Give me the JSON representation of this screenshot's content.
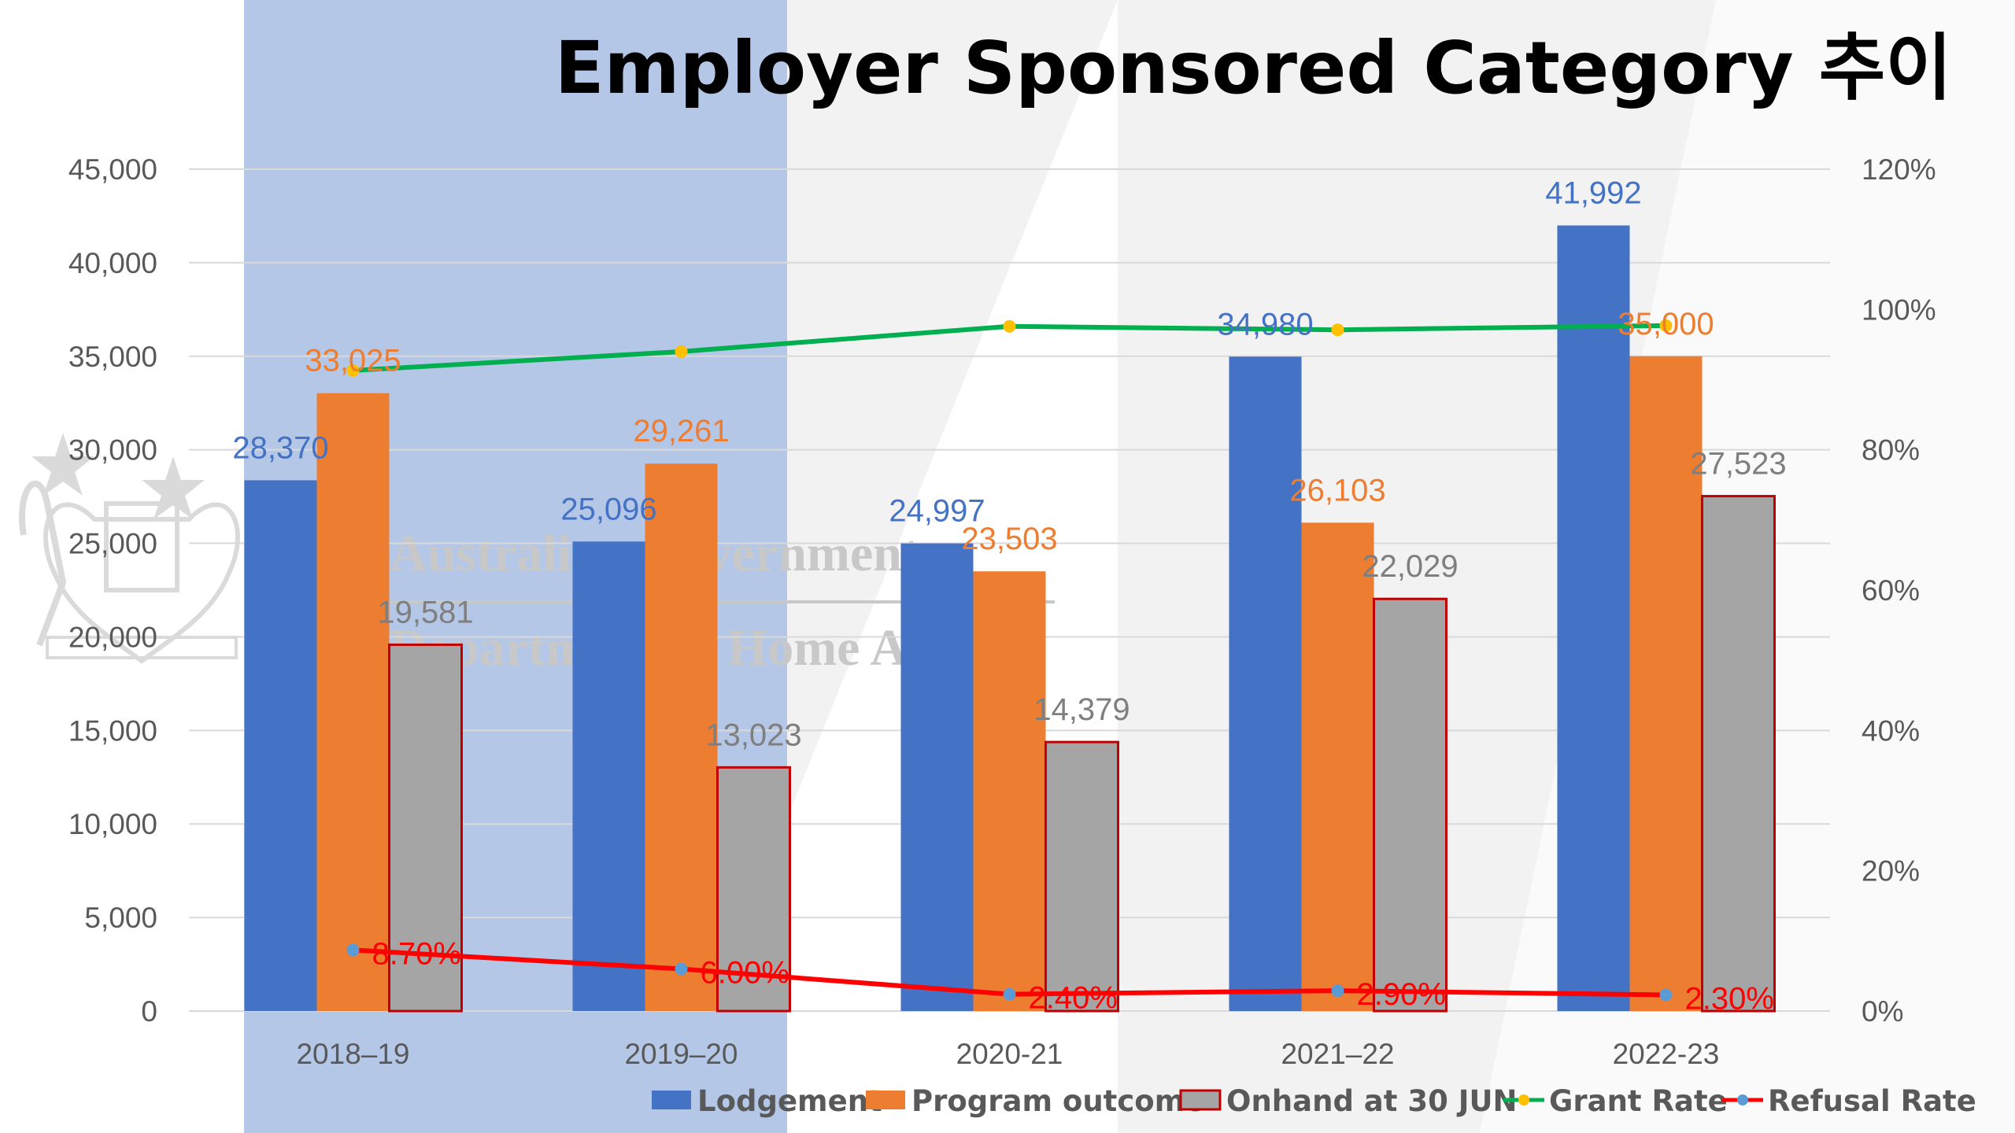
{
  "chart_data": {
    "title": "Employer Sponsored Category 추이",
    "type": "bar",
    "categories": [
      "2018–19",
      "2019–20",
      "2020-21",
      "2021–22",
      "2022-23"
    ],
    "series": [
      {
        "name": "Lodgement",
        "type": "bar",
        "axis": "left",
        "color": "#4472c4",
        "values": [
          28370,
          25096,
          24997,
          34980,
          41992
        ],
        "labels": [
          "28,370",
          "25,096",
          "24,997",
          "34,980",
          "41,992"
        ]
      },
      {
        "name": "Program outcome",
        "type": "bar",
        "axis": "left",
        "color": "#ed7d31",
        "values": [
          33025,
          29261,
          23503,
          26103,
          35000
        ],
        "labels": [
          "33,025",
          "29,261",
          "23,503",
          "26,103",
          "35,000"
        ]
      },
      {
        "name": "Onhand at 30 JUN",
        "type": "bar",
        "axis": "left",
        "color": "#a5a5a5",
        "border": "#c00000",
        "values": [
          19581,
          13023,
          14379,
          22029,
          27523
        ],
        "labels": [
          "19,581",
          "13,023",
          "14,379",
          "22,029",
          "27,523"
        ]
      },
      {
        "name": "Grant Rate",
        "type": "line",
        "axis": "right",
        "color": "#00b050",
        "marker": "#ffc000",
        "values": [
          91.3,
          94.0,
          97.6,
          97.1,
          97.7
        ],
        "labels": []
      },
      {
        "name": "Refusal Rate",
        "type": "line",
        "axis": "right",
        "color": "#ff0000",
        "marker": "#5b9bd5",
        "values": [
          8.7,
          6.0,
          2.4,
          2.9,
          2.3
        ],
        "labels": [
          "8.70%",
          "6.00%",
          "2.40%",
          "2.90%",
          "2.30%"
        ]
      }
    ],
    "y_left": {
      "min": 0,
      "max": 45000,
      "step": 5000,
      "tick_labels": [
        "0",
        "5,000",
        "10,000",
        "15,000",
        "20,000",
        "25,000",
        "30,000",
        "35,000",
        "40,000",
        "45,000"
      ]
    },
    "y_right": {
      "min": 0,
      "max": 120,
      "step": 20,
      "tick_labels": [
        "0%",
        "20%",
        "40%",
        "60%",
        "80%",
        "100%",
        "120%"
      ]
    },
    "grid": true,
    "legend_position": "bottom"
  },
  "watermark": {
    "line1": "Australian Government",
    "line2": "Department of Home Affairs"
  }
}
